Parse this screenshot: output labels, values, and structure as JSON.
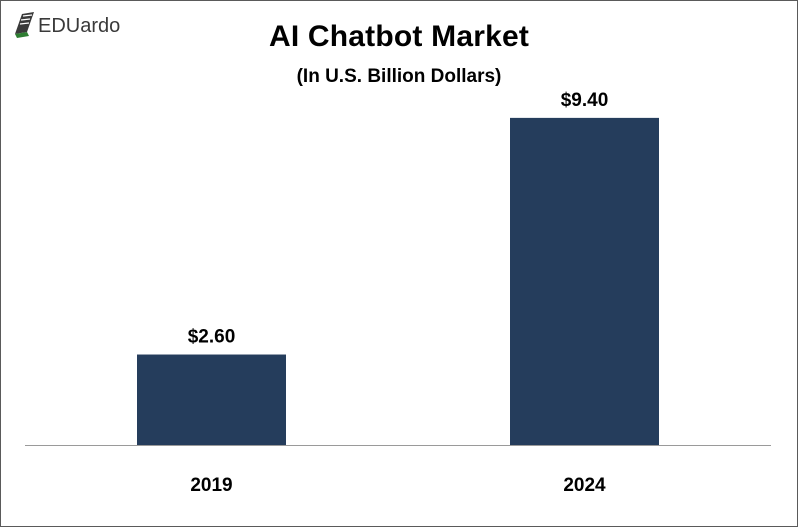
{
  "logo": {
    "text": "EDUardo",
    "icon": "book-icon",
    "color": "#3a3a3a",
    "accent": "#2e7d32"
  },
  "chart_data": {
    "type": "bar",
    "title": "AI Chatbot Market",
    "subtitle": "(In U.S. Billion Dollars)",
    "categories": [
      "2019",
      "2024"
    ],
    "values": [
      2.6,
      9.4
    ],
    "data_labels": [
      "$2.60",
      "$9.40"
    ],
    "xlabel": "",
    "ylabel": "",
    "ylim": [
      0,
      10
    ],
    "grid": false,
    "legend": "none",
    "bar_color": "#253d5c"
  }
}
